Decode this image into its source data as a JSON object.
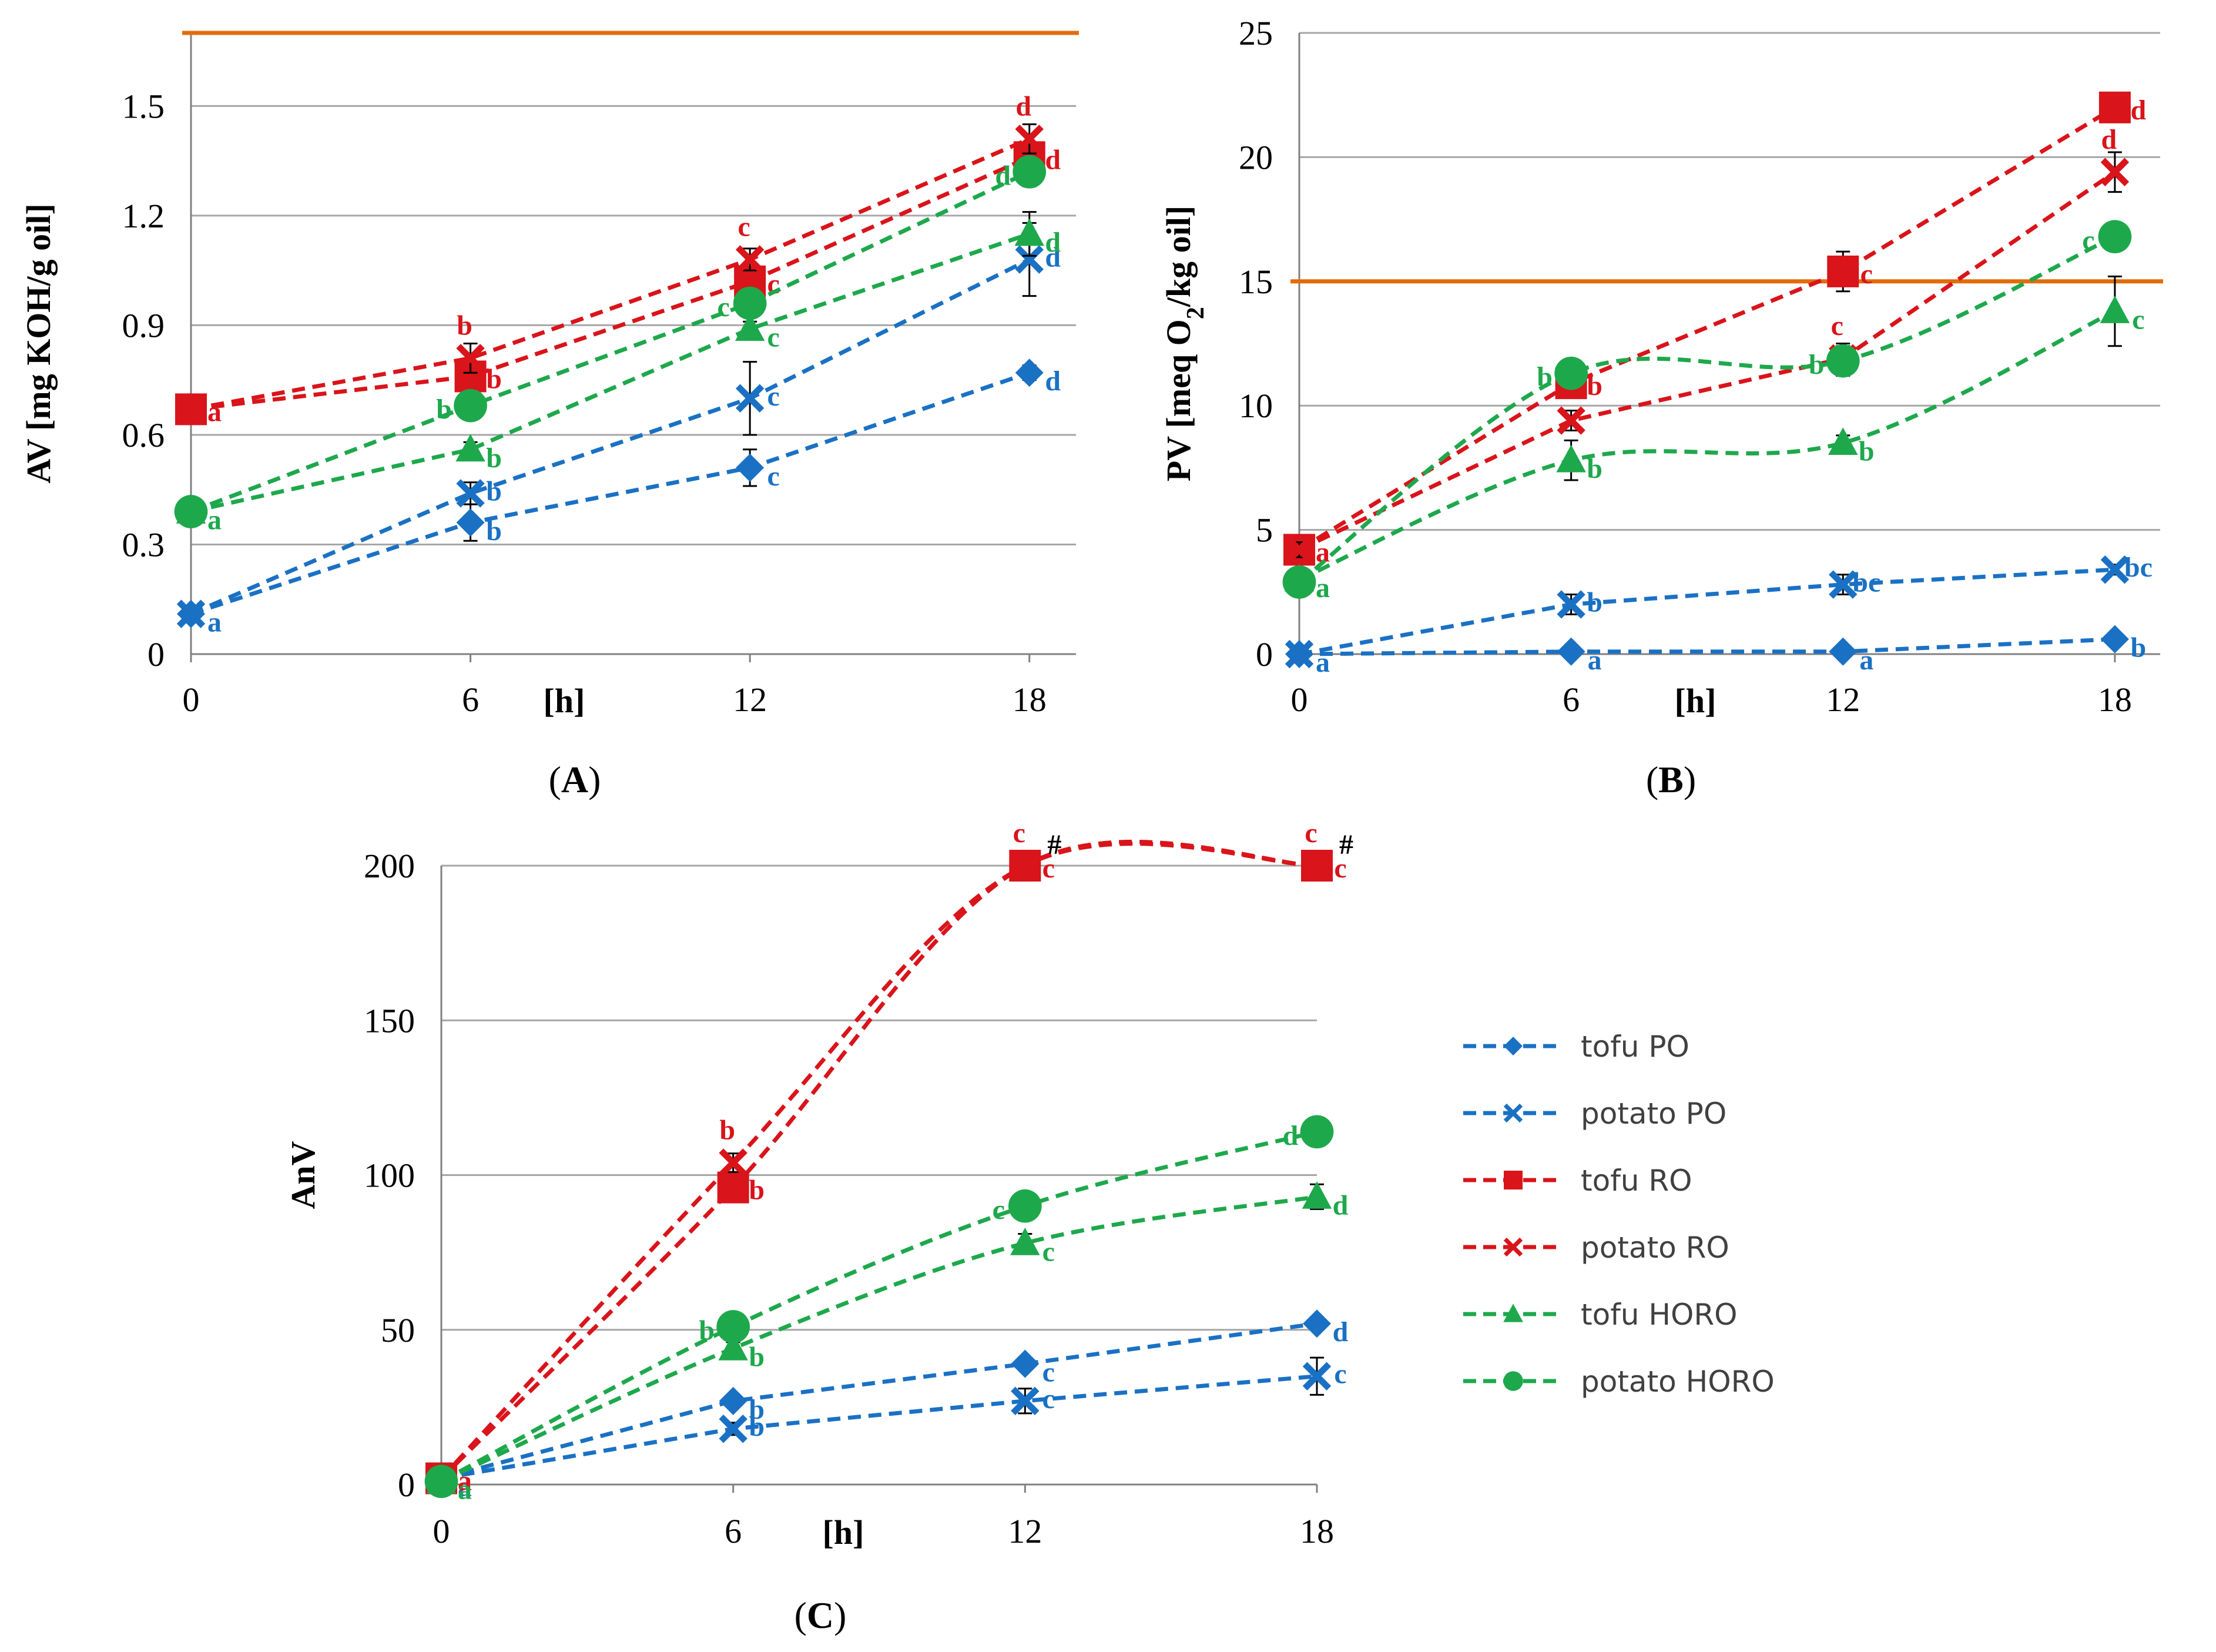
{
  "colors": {
    "blue": "#1a71c4",
    "red": "#d9141a",
    "green": "#1ea84c",
    "limit": "#e36c0a",
    "grid": "#a6a6a6",
    "axis": "#808080",
    "errorbar": "#000000"
  },
  "legend": [
    {
      "name": "tofu PO",
      "color": "blue",
      "marker": "diamond"
    },
    {
      "name": "potato PO",
      "color": "blue",
      "marker": "x"
    },
    {
      "name": "tofu RO",
      "color": "red",
      "marker": "square"
    },
    {
      "name": "potato RO",
      "color": "red",
      "marker": "x"
    },
    {
      "name": "tofu HORO",
      "color": "green",
      "marker": "triangle"
    },
    {
      "name": "potato HORO",
      "color": "green",
      "marker": "circle"
    }
  ],
  "chart_data": [
    {
      "id": "A",
      "type": "line",
      "panel_label_parts": [
        "(",
        "A",
        ")"
      ],
      "xlabel": "[h]",
      "ylabel": "AV [mg KOH/g oil]",
      "ylabel_parts": [
        {
          "t": "AV [mg KOH/g oil]",
          "sub": false
        }
      ],
      "x": [
        0,
        6,
        12,
        18
      ],
      "x_ticks": [
        "0",
        "6",
        "12",
        "18"
      ],
      "xlim": [
        0,
        19
      ],
      "ylim": [
        0,
        1.7
      ],
      "y_ticks": [
        0,
        0.3,
        0.6,
        0.9,
        1.2,
        1.5
      ],
      "y_tick_labels": [
        "0",
        "0.3",
        "0.6",
        "0.9",
        "1.2",
        "1.5"
      ],
      "limit_line": 1.7,
      "series": [
        {
          "name": "tofu PO",
          "color": "blue",
          "marker": "diamond",
          "values": [
            0.11,
            0.36,
            0.51,
            0.77
          ],
          "errors": [
            0.01,
            0.05,
            0.05,
            0.02
          ],
          "letters": [
            "a",
            "b",
            "c",
            "d"
          ],
          "smooth": false
        },
        {
          "name": "potato PO",
          "color": "blue",
          "marker": "x",
          "values": [
            0.11,
            0.44,
            0.7,
            1.08
          ],
          "errors": [
            0.01,
            0.03,
            0.1,
            0.1
          ],
          "letters": [
            "",
            "b",
            "c",
            "d"
          ],
          "smooth": false
        },
        {
          "name": "tofu RO",
          "color": "red",
          "marker": "square",
          "values": [
            0.67,
            0.76,
            1.02,
            1.36
          ],
          "errors": [
            0.01,
            0.03,
            0.03,
            0.04
          ],
          "letters": [
            "a",
            "b",
            "c",
            "d"
          ],
          "smooth": false
        },
        {
          "name": "potato RO",
          "color": "red",
          "marker": "x",
          "values": [
            0.67,
            0.81,
            1.08,
            1.41
          ],
          "errors": [
            0.01,
            0.04,
            0.03,
            0.04
          ],
          "letters": [
            "",
            "b",
            "c",
            "d"
          ],
          "smooth": false
        },
        {
          "name": "tofu HORO",
          "color": "green",
          "marker": "triangle",
          "values": [
            0.39,
            0.56,
            0.89,
            1.15
          ],
          "errors": [
            0.01,
            0.02,
            0.02,
            0.06
          ],
          "letters": [
            "a",
            "b",
            "c",
            "d"
          ],
          "smooth": false
        },
        {
          "name": "potato HORO",
          "color": "green",
          "marker": "circle",
          "values": [
            0.39,
            0.68,
            0.96,
            1.32
          ],
          "errors": [
            0.01,
            0.02,
            0.02,
            0.04
          ],
          "letters": [
            "",
            "b",
            "c",
            "d"
          ],
          "smooth": false
        }
      ]
    },
    {
      "id": "B",
      "type": "line",
      "panel_label_parts": [
        "(",
        "B",
        ")"
      ],
      "xlabel": "[h]",
      "ylabel": "PV [meq O2/kg oil]",
      "ylabel_parts": [
        {
          "t": "PV [meq O",
          "sub": false
        },
        {
          "t": "2",
          "sub": true
        },
        {
          "t": "/kg oil]",
          "sub": false
        }
      ],
      "x": [
        0,
        6,
        12,
        18
      ],
      "x_ticks": [
        "0",
        "6",
        "12",
        "18"
      ],
      "xlim": [
        0,
        19
      ],
      "ylim": [
        0,
        25
      ],
      "y_ticks": [
        0,
        5,
        10,
        15,
        20,
        25
      ],
      "y_tick_labels": [
        "0",
        "5",
        "10",
        "15",
        "20",
        "25"
      ],
      "limit_line": 15,
      "series": [
        {
          "name": "tofu PO",
          "color": "blue",
          "marker": "diamond",
          "values": [
            0.0,
            0.1,
            0.1,
            0.6
          ],
          "errors": [
            0,
            0,
            0,
            0.1
          ],
          "letters": [
            "a",
            "a",
            "a",
            "b"
          ],
          "smooth": false
        },
        {
          "name": "potato PO",
          "color": "blue",
          "marker": "x",
          "values": [
            0.0,
            2.0,
            2.8,
            3.4
          ],
          "errors": [
            0,
            0.4,
            0.4,
            0.2
          ],
          "letters": [
            "",
            "b",
            "bc",
            "bc"
          ],
          "smooth": false
        },
        {
          "name": "tofu RO",
          "color": "red",
          "marker": "square",
          "values": [
            4.2,
            10.9,
            15.4,
            22.0
          ],
          "errors": [
            0.3,
            0.5,
            0.8,
            0.4
          ],
          "letters": [
            "a",
            "b",
            "c",
            "d"
          ],
          "smooth": false
        },
        {
          "name": "potato RO",
          "color": "red",
          "marker": "x",
          "values": [
            4.2,
            9.4,
            11.9,
            19.4
          ],
          "errors": [
            0.3,
            0.4,
            0.6,
            0.8
          ],
          "letters": [
            "",
            "b",
            "c",
            "d"
          ],
          "smooth": false
        },
        {
          "name": "tofu HORO",
          "color": "green",
          "marker": "triangle",
          "values": [
            3.0,
            7.8,
            8.5,
            13.8
          ],
          "errors": [
            0.3,
            0.8,
            0.3,
            1.4
          ],
          "letters": [
            "a",
            "b",
            "b",
            "c"
          ],
          "smooth": true
        },
        {
          "name": "potato HORO",
          "color": "green",
          "marker": "circle",
          "values": [
            2.9,
            11.3,
            11.8,
            16.8
          ],
          "errors": [
            0.3,
            0.5,
            0.6,
            0.5
          ],
          "letters": [
            "",
            "b",
            "b",
            "c"
          ],
          "smooth": true
        }
      ]
    },
    {
      "id": "C",
      "type": "line",
      "panel_label_parts": [
        "(",
        "C",
        ")"
      ],
      "xlabel": "[h]",
      "ylabel": "AnV",
      "ylabel_parts": [
        {
          "t": "AnV",
          "sub": false
        }
      ],
      "x": [
        0,
        6,
        12,
        18
      ],
      "x_ticks": [
        "0",
        "6",
        "12",
        "18"
      ],
      "xlim": [
        0,
        18
      ],
      "ylim": [
        0,
        200
      ],
      "y_ticks": [
        0,
        50,
        100,
        150,
        200
      ],
      "y_tick_labels": [
        "0",
        "50",
        "100",
        "150",
        "200"
      ],
      "limit_line": null,
      "annotation": "#",
      "annotation_points": [
        [
          12,
          200
        ],
        [
          18,
          200
        ]
      ],
      "series": [
        {
          "name": "tofu PO",
          "color": "blue",
          "marker": "diamond",
          "values": [
            2,
            27,
            39,
            52
          ],
          "errors": [
            0,
            1,
            2,
            2
          ],
          "letters": [
            "a",
            "b",
            "c",
            "d"
          ],
          "smooth": false
        },
        {
          "name": "potato PO",
          "color": "blue",
          "marker": "x",
          "values": [
            2,
            18,
            27,
            35
          ],
          "errors": [
            0,
            2,
            4,
            6
          ],
          "letters": [
            "",
            "b",
            "c",
            "c"
          ],
          "smooth": false
        },
        {
          "name": "tofu RO",
          "color": "red",
          "marker": "square",
          "values": [
            2,
            96,
            200,
            200
          ],
          "errors": [
            0,
            3,
            0,
            0
          ],
          "letters": [
            "a",
            "b",
            "c",
            "c"
          ],
          "smooth": true
        },
        {
          "name": "potato RO",
          "color": "red",
          "marker": "x",
          "values": [
            2,
            104,
            200,
            200
          ],
          "errors": [
            0,
            3,
            0,
            0
          ],
          "letters": [
            "",
            "b",
            "c",
            "c"
          ],
          "smooth": true
        },
        {
          "name": "tofu HORO",
          "color": "green",
          "marker": "triangle",
          "values": [
            1,
            44,
            78,
            93
          ],
          "errors": [
            0,
            2,
            3,
            4
          ],
          "letters": [
            "a",
            "b",
            "c",
            "d"
          ],
          "smooth": true
        },
        {
          "name": "potato HORO",
          "color": "green",
          "marker": "circle",
          "values": [
            1,
            51,
            90,
            114
          ],
          "errors": [
            0,
            2,
            3,
            3
          ],
          "letters": [
            "",
            "b",
            "c",
            "d"
          ],
          "smooth": true
        }
      ]
    }
  ]
}
